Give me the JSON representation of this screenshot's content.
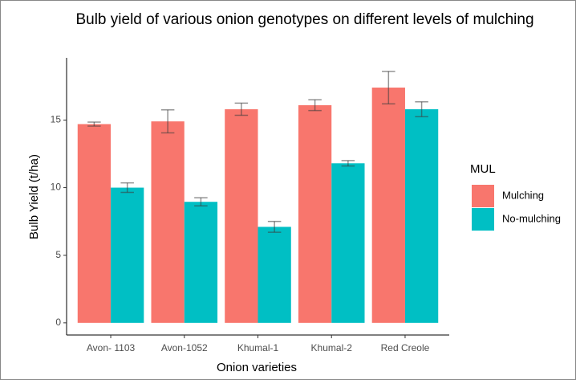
{
  "chart_data": {
    "type": "bar",
    "title": "Bulb yield of various onion genotypes on different levels of mulching",
    "x_label": "Onion varieties",
    "y_label": "Bulb Yield (t/ha)",
    "legend_title": "MUL",
    "legend_position": "right",
    "categories": [
      "Avon- 1103",
      "Avon-1052",
      "Khumal-1",
      "Khumal-2",
      "Red Creole"
    ],
    "series": [
      {
        "name": "Mulching",
        "color": "#F8766D",
        "values": [
          14.7,
          14.9,
          15.8,
          16.1,
          17.4
        ],
        "errors": [
          0.15,
          0.85,
          0.45,
          0.4,
          1.2
        ]
      },
      {
        "name": "No-mulching",
        "color": "#00BFC4",
        "values": [
          10.0,
          8.95,
          7.1,
          11.8,
          15.8
        ],
        "errors": [
          0.35,
          0.3,
          0.4,
          0.2,
          0.55
        ]
      }
    ],
    "ylim": [
      -0.9,
      19.6
    ],
    "yticks": [
      0,
      5,
      10,
      15
    ],
    "grid": false
  }
}
